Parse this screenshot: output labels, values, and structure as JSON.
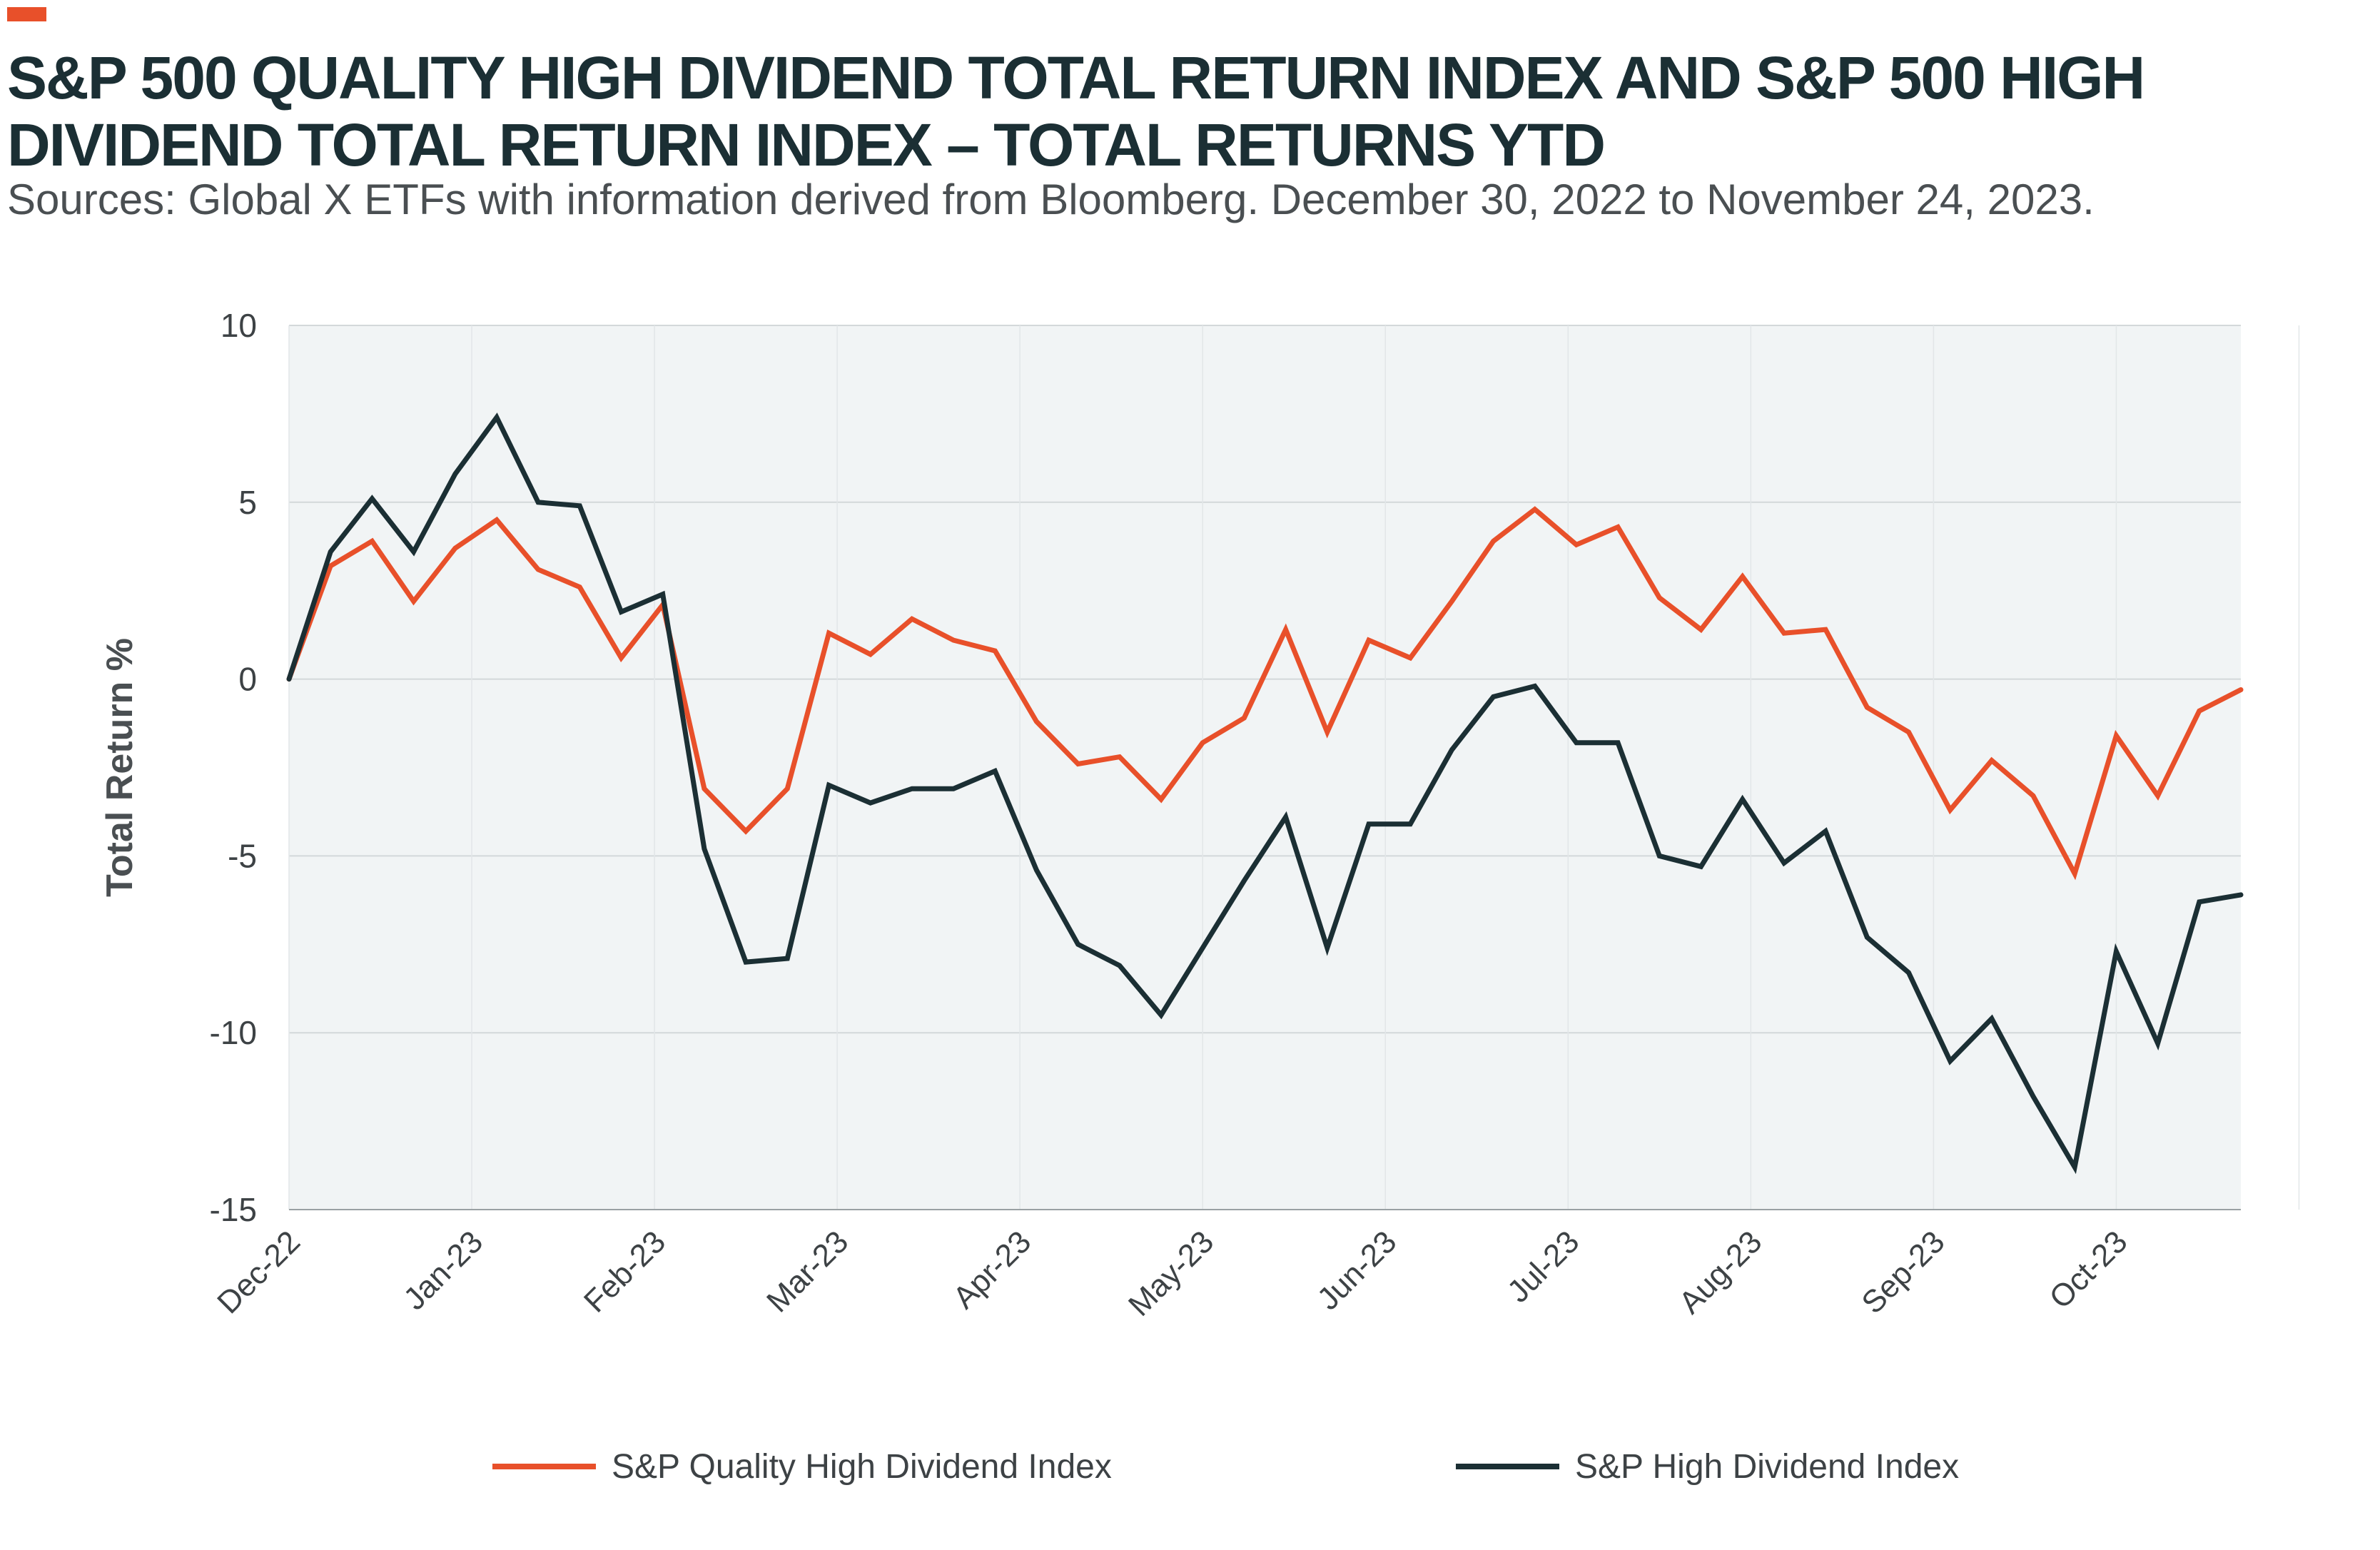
{
  "title": "S&P 500 QUALITY HIGH DIVIDEND TOTAL RETURN INDEX AND S&P 500 HIGH DIVIDEND TOTAL RETURN INDEX – TOTAL RETURNS YTD",
  "subtitle": "Sources: Global X ETFs with information derived from Bloomberg. December 30, 2022 to November 24, 2023.",
  "colors": {
    "accent": "#e8502a",
    "quality": "#e8502a",
    "highdiv": "#1b2f34",
    "plot_bg": "#f1f4f5",
    "grid": "#d3d8da",
    "text": "#3d4245"
  },
  "chart_data": {
    "type": "line",
    "ylabel": "Total Return %",
    "xlabel": "",
    "ylim": [
      -15,
      10
    ],
    "yticks": [
      "10",
      "5",
      "0",
      "-5",
      "-10",
      "-15"
    ],
    "ytick_values": [
      10,
      5,
      0,
      -5,
      -10,
      -15
    ],
    "xlim": [
      0,
      47
    ],
    "xtick_labels": [
      "Dec-22",
      "Jan-23",
      "Feb-23",
      "Mar-23",
      "Apr-23",
      "May-23",
      "Jun-23",
      "Jul-23",
      "Aug-23",
      "Sep-23",
      "Oct-23"
    ],
    "xtick_weeks": [
      0,
      4.4,
      8.8,
      13.2,
      17.6,
      22,
      26.4,
      30.8,
      35.2,
      39.6,
      44
    ],
    "grid": true,
    "legend_position": "bottom",
    "x_unit": "weeks since Dec-30-2022",
    "series": [
      {
        "name": "S&P Quality High Dividend Index",
        "color": "#e8502a",
        "x": [
          0,
          1,
          2,
          3,
          4,
          5,
          6,
          7,
          8,
          9,
          10,
          11,
          12,
          13,
          14,
          15,
          16,
          17,
          18,
          19,
          20,
          21,
          22,
          23,
          24,
          25,
          26,
          27,
          28,
          29,
          30,
          31,
          32,
          33,
          34,
          35,
          36,
          37,
          38,
          39,
          40,
          41,
          42,
          43,
          44,
          45,
          46,
          47
        ],
        "values": [
          0,
          3.2,
          3.9,
          2.2,
          3.7,
          4.5,
          3.1,
          2.6,
          0.6,
          2.1,
          -3.1,
          -4.3,
          -3.1,
          1.3,
          0.7,
          1.7,
          1.1,
          0.8,
          -1.2,
          -2.4,
          -2.2,
          -3.4,
          -1.8,
          -1.1,
          1.4,
          -1.5,
          1.1,
          0.6,
          2.2,
          3.9,
          4.8,
          3.8,
          4.3,
          2.3,
          1.4,
          2.9,
          1.3,
          1.4,
          -0.8,
          -1.5,
          -3.7,
          -2.3,
          -3.3,
          -5.5,
          -1.6,
          -3.3,
          -0.9,
          -0.3
        ]
      },
      {
        "name": "S&P High Dividend Index",
        "color": "#1b2f34",
        "x": [
          0,
          1,
          2,
          3,
          4,
          5,
          6,
          7,
          8,
          9,
          10,
          11,
          12,
          13,
          14,
          15,
          16,
          17,
          18,
          19,
          20,
          21,
          22,
          23,
          24,
          25,
          26,
          27,
          28,
          29,
          30,
          31,
          32,
          33,
          34,
          35,
          36,
          37,
          38,
          39,
          40,
          41,
          42,
          43,
          44,
          45,
          46,
          47
        ],
        "values": [
          0,
          3.6,
          5.1,
          3.6,
          5.8,
          7.4,
          5.0,
          4.9,
          1.9,
          2.4,
          -4.8,
          -8.0,
          -7.9,
          -3.0,
          -3.5,
          -3.1,
          -3.1,
          -2.6,
          -5.4,
          -7.5,
          -8.1,
          -9.5,
          -7.6,
          -5.7,
          -3.9,
          -7.6,
          -4.1,
          -4.1,
          -2.0,
          -0.5,
          -0.2,
          -1.8,
          -1.8,
          -5.0,
          -5.3,
          -3.4,
          -5.2,
          -4.3,
          -7.3,
          -8.3,
          -10.8,
          -9.6,
          -11.8,
          -13.8,
          -7.7,
          -10.3,
          -6.3,
          -6.1
        ]
      }
    ]
  }
}
